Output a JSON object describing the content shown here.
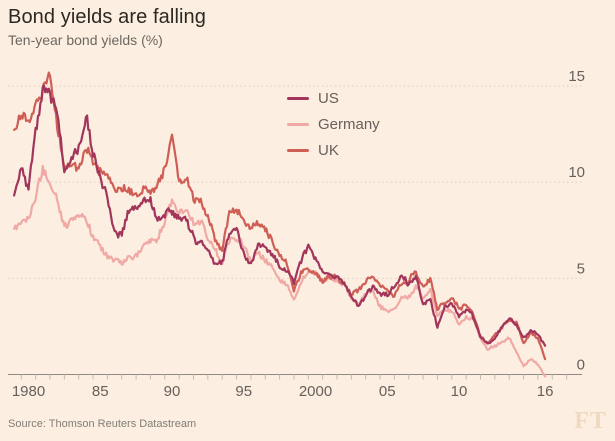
{
  "header": {
    "title": "Bond yields are falling",
    "subtitle": "Ten-year bond yields (%)"
  },
  "footer": {
    "source": "Source: Thomson Reuters Datastream",
    "logo": "FT"
  },
  "colors": {
    "background": "#FCEFE1",
    "title_text": "#2C2822",
    "muted_text": "#66605C",
    "axis_line": "#918A83",
    "tick_mark": "#C2BAB0",
    "gridline": "#DACFC3",
    "source_text": "#837D76",
    "logo_text": "#EFD9C1"
  },
  "chart_data": {
    "type": "line",
    "title": "Bond yields are falling",
    "subtitle": "Ten-year bond yields (%)",
    "xlabel": "",
    "ylabel": "Ten-year bond yields (%)",
    "y_axis_side": "right",
    "grid": "dotted-horizontal",
    "legend_position": "top-center",
    "xlim": [
      1979.5,
      2017
    ],
    "ylim": [
      0,
      15
    ],
    "yticks": [
      0,
      5,
      10,
      15
    ],
    "xticks": [
      {
        "year": 1980,
        "label": "1980"
      },
      {
        "year": 1985,
        "label": "85"
      },
      {
        "year": 1990,
        "label": "90"
      },
      {
        "year": 1995,
        "label": "95"
      },
      {
        "year": 2000,
        "label": "2000"
      },
      {
        "year": 2005,
        "label": "05"
      },
      {
        "year": 2010,
        "label": "10"
      },
      {
        "year": 2016,
        "label": "16"
      }
    ],
    "x_start": 1979.5,
    "x_step": 0.5,
    "series": [
      {
        "name": "US",
        "color": "#A1355C",
        "values": [
          9.2,
          10.8,
          9.6,
          12.6,
          14.8,
          14.6,
          13.6,
          10.6,
          11.4,
          11.8,
          13.5,
          11.5,
          10.3,
          9.2,
          7.3,
          7.2,
          8.6,
          8.8,
          9.0,
          9.2,
          8.1,
          8.3,
          8.6,
          8.1,
          8.2,
          7.1,
          6.9,
          6.4,
          5.8,
          5.9,
          7.3,
          7.7,
          6.3,
          5.7,
          6.8,
          6.5,
          6.2,
          5.6,
          5.4,
          4.8,
          5.9,
          6.7,
          6.0,
          5.2,
          5.2,
          5.0,
          4.8,
          4.0,
          3.5,
          4.2,
          4.6,
          4.2,
          4.2,
          4.5,
          5.1,
          4.7,
          5.0,
          3.7,
          3.9,
          2.4,
          3.5,
          3.7,
          3.0,
          3.4,
          3.0,
          2.0,
          1.6,
          1.9,
          2.5,
          2.9,
          2.6,
          1.9,
          2.3,
          2.1,
          1.5
        ]
      },
      {
        "name": "Germany",
        "color": "#F0A9A5",
        "values": [
          7.6,
          7.9,
          8.1,
          9.3,
          10.6,
          9.9,
          9.0,
          7.7,
          8.1,
          8.2,
          8.0,
          7.3,
          6.7,
          6.2,
          5.9,
          5.8,
          6.1,
          6.2,
          6.6,
          6.9,
          7.0,
          8.0,
          9.0,
          8.4,
          8.6,
          7.9,
          8.0,
          7.1,
          6.4,
          5.8,
          7.0,
          7.2,
          6.6,
          5.9,
          6.4,
          5.9,
          5.6,
          5.0,
          4.6,
          3.9,
          4.8,
          5.4,
          5.2,
          4.8,
          5.0,
          4.9,
          4.7,
          4.0,
          3.8,
          4.2,
          4.3,
          3.6,
          3.2,
          3.4,
          4.0,
          4.0,
          4.6,
          4.0,
          4.4,
          3.0,
          3.4,
          3.3,
          2.6,
          3.0,
          2.9,
          1.9,
          1.3,
          1.5,
          1.7,
          1.9,
          1.2,
          0.4,
          0.8,
          0.5,
          -0.1
        ]
      },
      {
        "name": "UK",
        "color": "#CF5F56",
        "values": [
          13.0,
          13.5,
          13.1,
          13.9,
          14.9,
          15.8,
          12.9,
          11.0,
          10.9,
          10.6,
          11.8,
          11.2,
          10.5,
          10.3,
          9.6,
          9.8,
          9.6,
          9.4,
          9.5,
          9.6,
          9.8,
          10.8,
          12.4,
          10.1,
          10.2,
          9.3,
          8.9,
          8.1,
          7.1,
          6.5,
          8.4,
          8.6,
          8.0,
          7.5,
          7.9,
          7.5,
          7.0,
          6.2,
          5.8,
          4.4,
          5.2,
          5.5,
          5.2,
          4.9,
          5.1,
          5.0,
          4.8,
          4.2,
          4.3,
          4.8,
          5.2,
          4.6,
          4.3,
          4.1,
          4.7,
          4.9,
          5.4,
          4.5,
          4.9,
          3.4,
          3.7,
          4.0,
          3.4,
          3.6,
          3.1,
          2.0,
          1.6,
          2.1,
          2.4,
          2.9,
          2.7,
          1.6,
          2.1,
          1.9,
          0.8
        ]
      }
    ]
  }
}
